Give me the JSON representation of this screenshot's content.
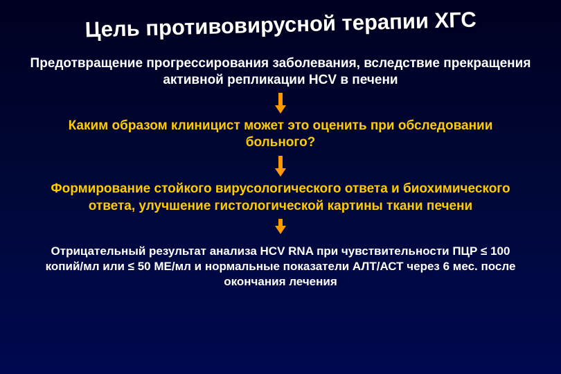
{
  "slide": {
    "title": "Цель противовирусной терапии ХГС",
    "block1": "Предотвращение прогрессирования заболевания, вследствие прекращения активной репликации HCV в печени",
    "block2": "Каким образом клиницист может это оценить при обследовании больного?",
    "block3": "Формирование стойкого вирусологического ответа и биохимического ответа, улучшение гистологической картины ткани печени",
    "block4": "Отрицательный результат анализа HCV RNA при чувствительности ПЦР ≤ 100 копий/мл или ≤ 50 МЕ/мл и нормальные показатели АЛТ/АСТ через 6 мес. после окончания лечения"
  },
  "styling": {
    "background_gradient": [
      "#000020",
      "#000838",
      "#000850"
    ],
    "title_color": "#ffffff",
    "title_fontsize": 31,
    "title_rotation_deg": -1.5,
    "text_white": "#ffffff",
    "text_yellow": "#ffcc00",
    "arrow_color": "#ff9900",
    "block_fontsize": 19,
    "block_small_fontsize": 17,
    "font_family": "Arial, Verdana, sans-serif"
  },
  "structure": {
    "type": "flowchart",
    "nodes": [
      {
        "id": "title",
        "text_key": "slide.title",
        "color": "white"
      },
      {
        "id": "n1",
        "text_key": "slide.block1",
        "color": "white"
      },
      {
        "id": "n2",
        "text_key": "slide.block2",
        "color": "yellow"
      },
      {
        "id": "n3",
        "text_key": "slide.block3",
        "color": "yellow"
      },
      {
        "id": "n4",
        "text_key": "slide.block4",
        "color": "white"
      }
    ],
    "edges": [
      {
        "from": "n1",
        "to": "n2",
        "style": "arrow-down",
        "color": "#ff9900"
      },
      {
        "from": "n2",
        "to": "n3",
        "style": "arrow-down",
        "color": "#ff9900"
      },
      {
        "from": "n3",
        "to": "n4",
        "style": "arrow-down-short",
        "color": "#ff9900"
      }
    ]
  }
}
